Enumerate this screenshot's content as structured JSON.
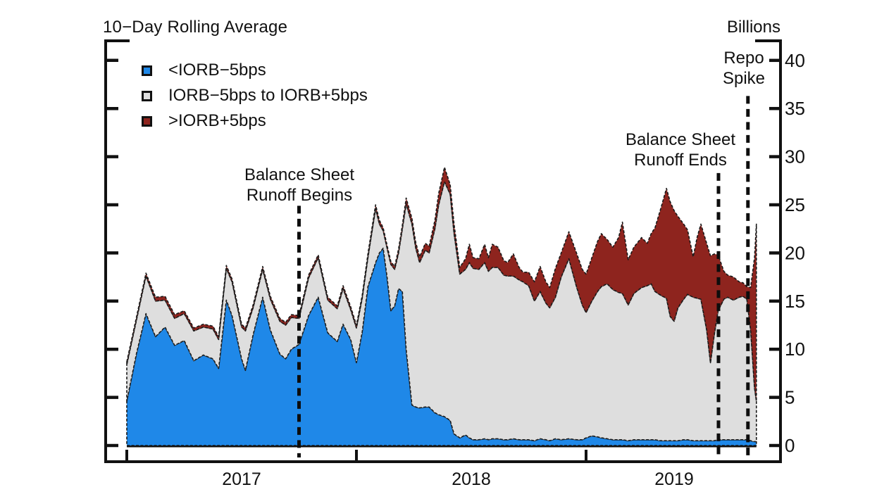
{
  "header": {
    "title": "10−Day Rolling Average",
    "unit_label": "Billions"
  },
  "legend": {
    "items": [
      {
        "label": "<IORB−5bps",
        "color": "#1f88e8"
      },
      {
        "label": "IORB−5bps to IORB+5bps",
        "color": "#dedede"
      },
      {
        "label": ">IORB+5bps",
        "color": "#8e241e"
      }
    ]
  },
  "annotations": {
    "runoff_begins": {
      "line1": "Balance Sheet",
      "line2": "Runoff Begins"
    },
    "runoff_ends": {
      "line1": "Balance Sheet",
      "line2": "Runoff Ends"
    },
    "repo_spike": {
      "line1": "Repo",
      "line2": "Spike"
    }
  },
  "chart_data": {
    "type": "area",
    "stacked": true,
    "title": "10−Day Rolling Average",
    "ylabel": "Billions",
    "ylim": [
      0,
      40
    ],
    "grid": false,
    "legend_position": "top-left",
    "values_unit": "billions of dollars",
    "values_note": "series values are cumulative stacked tops; x is months since 2017-01",
    "x": [
      0,
      0.5,
      1,
      1.5,
      2,
      2.5,
      3,
      3.5,
      4,
      4.5,
      4.8,
      5.2,
      5.5,
      6,
      6.2,
      6.6,
      7.1,
      7.5,
      8,
      8.3,
      8.6,
      9,
      9.5,
      10,
      10.5,
      11,
      11.3,
      11.7,
      12,
      12.3,
      12.6,
      13,
      13.2,
      13.4,
      13.6,
      13.8,
      14,
      14.2,
      14.4,
      14.6,
      14.9,
      15.1,
      15.3,
      15.6,
      15.8,
      16.1,
      16.3,
      16.6,
      16.9,
      17.1,
      17.4,
      17.7,
      17.9,
      18.1,
      18.4,
      18.7,
      18.9,
      19.1,
      19.4,
      19.7,
      19.9,
      20.2,
      20.5,
      20.7,
      21,
      21.3,
      21.6,
      21.9,
      22.1,
      22.4,
      22.7,
      23.1,
      23.5,
      23.8,
      24,
      24.3,
      24.6,
      24.8,
      25.1,
      25.4,
      25.7,
      25.9,
      26.2,
      26.5,
      26.9,
      27.2,
      27.4,
      27.6,
      27.9,
      28.2,
      28.4,
      28.6,
      28.8,
      29.1,
      29.3,
      29.6,
      29.8,
      30,
      30.3,
      30.5,
      30.7,
      30.9,
      31.2,
      31.4,
      31.7,
      32,
      32.2,
      32.4,
      32.6,
      32.8,
      32.9
    ],
    "series": [
      {
        "name": "<IORB−5bps",
        "color": "#1f88e8",
        "stack_top_values": [
          4.6,
          9.5,
          13.7,
          11.3,
          12.3,
          10.4,
          10.9,
          8.8,
          9.4,
          9.0,
          8.0,
          15.1,
          13.5,
          9.0,
          7.8,
          11.5,
          15.4,
          12.0,
          9.5,
          9.0,
          10.0,
          10.5,
          13.5,
          15.4,
          11.7,
          10.8,
          12.6,
          11.0,
          8.6,
          11.8,
          16.5,
          19.0,
          20.0,
          20.5,
          17.5,
          14.0,
          14.5,
          16.3,
          16.0,
          10.0,
          4.2,
          4.0,
          3.9,
          4.0,
          4.0,
          3.4,
          3.2,
          3.0,
          2.6,
          1.2,
          0.8,
          1.1,
          0.8,
          0.6,
          0.6,
          0.7,
          0.6,
          0.7,
          0.7,
          0.6,
          0.6,
          0.7,
          0.6,
          0.6,
          0.6,
          0.5,
          0.7,
          0.6,
          0.5,
          0.7,
          0.6,
          0.7,
          0.6,
          0.6,
          0.8,
          1.0,
          0.9,
          0.8,
          0.7,
          0.6,
          0.6,
          0.6,
          0.5,
          0.6,
          0.6,
          0.6,
          0.6,
          0.6,
          0.5,
          0.5,
          0.5,
          0.5,
          0.5,
          0.6,
          0.6,
          0.5,
          0.5,
          0.5,
          0.5,
          0.5,
          0.5,
          0.6,
          0.6,
          0.6,
          0.6,
          0.6,
          0.6,
          0.6,
          0.5,
          0.4,
          0.4
        ]
      },
      {
        "name": "IORB−5bps to IORB+5bps",
        "color": "#dedede",
        "stack_top_values": [
          8.4,
          13.0,
          17.6,
          15.0,
          15.1,
          13.2,
          13.7,
          11.9,
          12.3,
          12.1,
          11.0,
          18.4,
          17.0,
          12.3,
          11.9,
          14.3,
          18.3,
          15.2,
          12.9,
          12.5,
          13.3,
          13.2,
          17.4,
          19.5,
          15.1,
          14.2,
          16.3,
          14.1,
          12.2,
          15.3,
          19.5,
          24.6,
          23.0,
          22.3,
          20.5,
          18.8,
          18.3,
          20.0,
          22.5,
          25.1,
          23.0,
          20.5,
          19.0,
          20.3,
          20.0,
          22.5,
          25.0,
          27.4,
          26.1,
          22.0,
          17.8,
          18.3,
          19.0,
          18.4,
          18.3,
          19.0,
          18.1,
          18.5,
          18.5,
          17.7,
          17.6,
          17.6,
          17.2,
          17.0,
          16.6,
          15.0,
          16.0,
          14.8,
          14.3,
          15.4,
          17.5,
          19.4,
          16.5,
          14.6,
          13.8,
          15.0,
          16.0,
          16.5,
          16.8,
          16.2,
          15.9,
          15.8,
          14.6,
          15.8,
          16.4,
          16.6,
          16.8,
          16.0,
          15.6,
          15.3,
          13.4,
          12.9,
          14.3,
          15.2,
          15.7,
          15.4,
          15.3,
          15.2,
          12.0,
          8.6,
          11.5,
          14.0,
          15.2,
          15.4,
          15.1,
          15.4,
          15.5,
          15.2,
          12.0,
          6.0,
          4.6
        ]
      },
      {
        "name": ">IORB+5bps",
        "color": "#8e241e",
        "stack_top_values": [
          8.7,
          13.3,
          17.9,
          15.4,
          15.5,
          13.6,
          14.0,
          12.2,
          12.6,
          12.4,
          11.3,
          18.7,
          17.3,
          12.6,
          12.2,
          14.6,
          18.6,
          15.5,
          13.2,
          12.8,
          13.6,
          13.5,
          17.7,
          19.8,
          15.4,
          14.5,
          16.6,
          14.4,
          12.5,
          15.6,
          19.9,
          25.0,
          23.4,
          22.6,
          20.8,
          19.1,
          18.6,
          20.4,
          22.9,
          25.7,
          23.6,
          21.1,
          19.6,
          21.0,
          20.7,
          23.4,
          26.2,
          28.9,
          27.1,
          23.0,
          18.5,
          19.4,
          20.9,
          19.5,
          19.4,
          20.9,
          19.5,
          20.9,
          20.6,
          19.2,
          19.0,
          19.9,
          18.5,
          18.0,
          18.0,
          17.0,
          18.6,
          17.0,
          16.4,
          18.4,
          20.0,
          22.2,
          20.0,
          18.3,
          17.8,
          19.5,
          21.2,
          22.0,
          21.4,
          20.6,
          21.6,
          23.2,
          19.3,
          20.6,
          21.6,
          21.0,
          22.0,
          22.6,
          24.6,
          26.7,
          25.3,
          24.4,
          23.8,
          23.0,
          22.4,
          19.6,
          21.6,
          23.0,
          21.0,
          19.7,
          19.9,
          19.8,
          18.1,
          17.7,
          17.5,
          17.0,
          16.9,
          16.5,
          16.4,
          19.5,
          23.0
        ]
      }
    ],
    "y_axis": {
      "ticks": [
        0,
        5,
        10,
        15,
        20,
        25,
        30,
        35,
        40
      ],
      "side": "right"
    },
    "x_axis": {
      "tick_months": [
        0,
        12,
        24
      ],
      "year_labels": [
        {
          "label": "2017",
          "center_month": 6
        },
        {
          "label": "2018",
          "center_month": 18
        },
        {
          "label": "2019",
          "center_month": 28.6
        }
      ]
    },
    "event_lines": [
      {
        "label": "Balance Sheet Runoff Begins",
        "date": "2017-10",
        "x_month": 9.0,
        "top_value": 24.9
      },
      {
        "label": "Balance Sheet Runoff Ends",
        "date": "2019-08",
        "x_month": 30.92,
        "top_value": 28.3
      },
      {
        "label": "Repo Spike",
        "date": "2019-09",
        "x_month": 32.46,
        "top_value": 36.3
      }
    ]
  }
}
